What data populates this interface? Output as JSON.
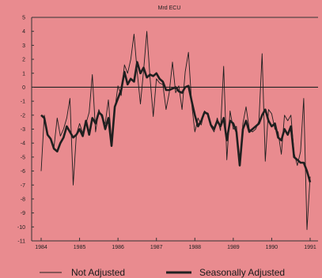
{
  "chart_data": {
    "type": "line",
    "title": "Mrd ECU",
    "xlabel": "",
    "ylabel": "",
    "xlim": [
      1984,
      1991
    ],
    "ylim": [
      -11,
      5
    ],
    "x_ticks": [
      "1984",
      "1985",
      "1986",
      "1987",
      "1988",
      "1989",
      "1990",
      "1991"
    ],
    "y_ticks": [
      "5",
      "4",
      "3",
      "2",
      "1",
      "0",
      "-1",
      "-2",
      "-3",
      "-4",
      "-5",
      "-6",
      "-7",
      "-8",
      "-9",
      "-10",
      "-11"
    ],
    "grid": false,
    "zero_line": true,
    "legend_position": "bottom",
    "colors": {
      "background": "#e98b8f",
      "line": "#1f1f1f"
    },
    "series": [
      {
        "name": "Not Adjusted",
        "style": "thin",
        "x": [
          1984.0,
          1984.083,
          1984.167,
          1984.25,
          1984.333,
          1984.417,
          1984.5,
          1984.583,
          1984.667,
          1984.75,
          1984.833,
          1984.917,
          1985.0,
          1985.083,
          1985.167,
          1985.25,
          1985.333,
          1985.417,
          1985.5,
          1985.583,
          1985.667,
          1985.75,
          1985.833,
          1985.917,
          1986.0,
          1986.083,
          1986.167,
          1986.25,
          1986.333,
          1986.417,
          1986.5,
          1986.583,
          1986.667,
          1986.75,
          1986.833,
          1986.917,
          1987.0,
          1987.083,
          1987.167,
          1987.25,
          1987.333,
          1987.417,
          1987.5,
          1987.583,
          1987.667,
          1987.75,
          1987.833,
          1987.917,
          1988.0,
          1988.083,
          1988.167,
          1988.25,
          1988.333,
          1988.417,
          1988.5,
          1988.583,
          1988.667,
          1988.75,
          1988.833,
          1988.917,
          1989.0,
          1989.083,
          1989.167,
          1989.25,
          1989.333,
          1989.417,
          1989.5,
          1989.583,
          1989.667,
          1989.75,
          1989.833,
          1989.917,
          1990.0,
          1990.083,
          1990.167,
          1990.25,
          1990.333,
          1990.417,
          1990.5,
          1990.583,
          1990.667,
          1990.75,
          1990.833,
          1990.917,
          1991.0
        ],
        "values": [
          -6.0,
          -2.0,
          -3.3,
          -3.8,
          -4.3,
          -2.2,
          -3.5,
          -3.0,
          -2.2,
          -0.8,
          -7.0,
          -3.4,
          -2.6,
          -3.3,
          -2.6,
          -1.8,
          0.9,
          -3.2,
          -1.6,
          -2.2,
          -2.6,
          -0.9,
          -3.9,
          -1.6,
          0.1,
          -0.6,
          1.6,
          1.0,
          2.0,
          3.8,
          1.1,
          -1.2,
          1.2,
          4.0,
          0.7,
          -2.1,
          0.6,
          0.3,
          0.2,
          -1.6,
          -0.4,
          1.8,
          -0.4,
          0.1,
          -1.6,
          1.1,
          2.5,
          -1.2,
          -3.2,
          -2.2,
          -2.7,
          -1.7,
          -1.9,
          -2.8,
          -3.2,
          -2.2,
          -3.1,
          1.5,
          -5.2,
          -1.7,
          -3.0,
          -2.8,
          -5.6,
          -2.6,
          -1.4,
          -3.0,
          -3.2,
          -3.0,
          -2.4,
          2.4,
          -5.3,
          -1.6,
          -1.9,
          -3.0,
          -3.2,
          -4.8,
          -2.0,
          -2.4,
          -2.0,
          -4.7,
          -5.6,
          -4.6,
          -0.8,
          -10.2,
          -6.4
        ]
      },
      {
        "name": "Seasonally Adjusted",
        "style": "thick",
        "x": [
          1984.0,
          1984.083,
          1984.167,
          1984.25,
          1984.333,
          1984.417,
          1984.5,
          1984.583,
          1984.667,
          1984.75,
          1984.833,
          1984.917,
          1985.0,
          1985.083,
          1985.167,
          1985.25,
          1985.333,
          1985.417,
          1985.5,
          1985.583,
          1985.667,
          1985.75,
          1985.833,
          1985.917,
          1986.0,
          1986.083,
          1986.167,
          1986.25,
          1986.333,
          1986.417,
          1986.5,
          1986.583,
          1986.667,
          1986.75,
          1986.833,
          1986.917,
          1987.0,
          1987.083,
          1987.167,
          1987.25,
          1987.333,
          1987.417,
          1987.5,
          1987.583,
          1987.667,
          1987.75,
          1987.833,
          1987.917,
          1988.0,
          1988.083,
          1988.167,
          1988.25,
          1988.333,
          1988.417,
          1988.5,
          1988.583,
          1988.667,
          1988.75,
          1988.833,
          1988.917,
          1989.0,
          1989.083,
          1989.167,
          1989.25,
          1989.333,
          1989.417,
          1989.5,
          1989.583,
          1989.667,
          1989.75,
          1989.833,
          1989.917,
          1990.0,
          1990.083,
          1990.167,
          1990.25,
          1990.333,
          1990.417,
          1990.5,
          1990.583,
          1990.667,
          1990.75,
          1990.833,
          1990.917,
          1991.0
        ],
        "values": [
          -2.0,
          -2.2,
          -3.4,
          -3.7,
          -4.4,
          -4.6,
          -4.0,
          -3.6,
          -2.8,
          -3.2,
          -3.6,
          -3.4,
          -3.0,
          -3.5,
          -2.4,
          -3.4,
          -2.2,
          -2.6,
          -1.8,
          -2.0,
          -3.0,
          -2.2,
          -4.2,
          -1.4,
          -0.8,
          -0.2,
          1.1,
          0.2,
          0.6,
          0.4,
          1.8,
          1.0,
          1.4,
          0.7,
          0.9,
          0.8,
          1.0,
          0.6,
          0.4,
          -0.2,
          -0.2,
          -0.1,
          0.0,
          -0.3,
          -0.4,
          0.0,
          0.1,
          -1.0,
          -2.0,
          -2.8,
          -2.4,
          -1.8,
          -1.9,
          -2.7,
          -3.0,
          -2.4,
          -2.8,
          -2.2,
          -3.8,
          -2.4,
          -2.6,
          -3.2,
          -5.6,
          -3.0,
          -2.4,
          -3.2,
          -3.0,
          -2.8,
          -2.6,
          -2.0,
          -1.6,
          -2.4,
          -2.8,
          -2.6,
          -3.6,
          -3.8,
          -3.0,
          -3.4,
          -2.8,
          -5.0,
          -5.2,
          -5.4,
          -5.4,
          -6.0,
          -6.8
        ]
      }
    ]
  }
}
